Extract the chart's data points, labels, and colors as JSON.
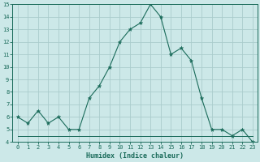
{
  "x": [
    0,
    1,
    2,
    3,
    4,
    5,
    6,
    7,
    8,
    9,
    10,
    11,
    12,
    13,
    14,
    15,
    16,
    17,
    18,
    19,
    20,
    21,
    22,
    23
  ],
  "y_upper": [
    6,
    5.5,
    6.5,
    5.5,
    6,
    5,
    5,
    7.5,
    8.5,
    10,
    12,
    13,
    13.5,
    15,
    14,
    11,
    11.5,
    10.5,
    7.5,
    5,
    5,
    4.5,
    5,
    4
  ],
  "y_lower": [
    4.5,
    4.5,
    4.5,
    4.5,
    4.5,
    4.5,
    4.5,
    4.5,
    4.5,
    4.5,
    4.5,
    4.5,
    4.5,
    4.5,
    4.5,
    4.5,
    4.5,
    4.5,
    4.5,
    4.5,
    4.5,
    4.5,
    4.5,
    4.5
  ],
  "line_color": "#1a6b5a",
  "bg_color": "#cce8e8",
  "grid_color": "#aacccc",
  "xlabel": "Humidex (Indice chaleur)",
  "xlim": [
    -0.5,
    23.5
  ],
  "ylim": [
    4,
    15
  ],
  "yticks": [
    4,
    5,
    6,
    7,
    8,
    9,
    10,
    11,
    12,
    13,
    14,
    15
  ],
  "xticks": [
    0,
    1,
    2,
    3,
    4,
    5,
    6,
    7,
    8,
    9,
    10,
    11,
    12,
    13,
    14,
    15,
    16,
    17,
    18,
    19,
    20,
    21,
    22,
    23
  ],
  "xtick_labels": [
    "0",
    "1",
    "2",
    "3",
    "4",
    "5",
    "6",
    "7",
    "8",
    "9",
    "10",
    "11",
    "12",
    "13",
    "14",
    "15",
    "16",
    "17",
    "18",
    "19",
    "20",
    "21",
    "22",
    "23"
  ]
}
